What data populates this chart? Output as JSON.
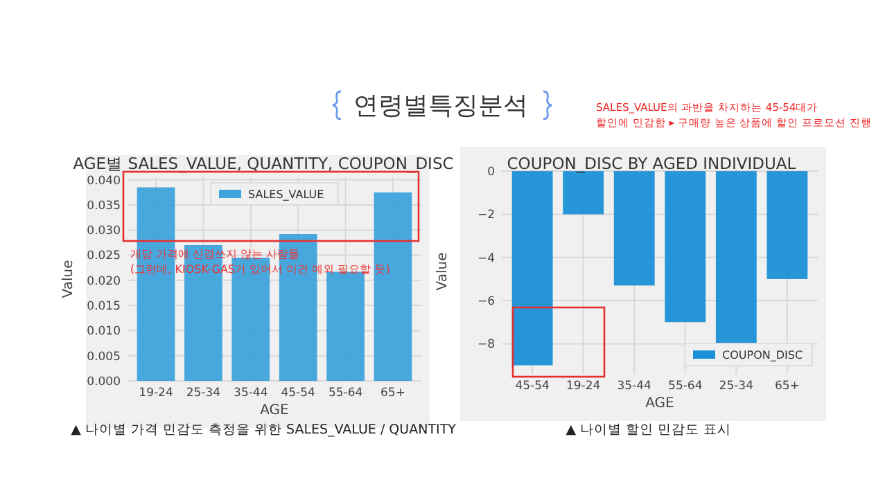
{
  "chart_data": [
    {
      "type": "other",
      "title": "연령별특징분석",
      "annotations": [
        "SALES_VALUE의 과반을 차지하는 45-54대가",
        "할인에 민감함 ▸ 구매량 높은 상품에 할인 프로모션 진행"
      ]
    },
    {
      "type": "bar",
      "title": "AGE별 SALES_VALUE, QUANTITY, COUPON_DISC",
      "xlabel": "AGE",
      "ylabel": "Value",
      "categories": [
        "19-24",
        "25-34",
        "35-44",
        "45-54",
        "55-64",
        "65+"
      ],
      "series": [
        {
          "name": "SALES_VALUE",
          "color": "#3ea3dc",
          "values": [
            0.0385,
            0.027,
            0.0245,
            0.0292,
            0.0217,
            0.0375
          ]
        }
      ],
      "ylim": [
        0,
        0.0405
      ],
      "yticks": [
        {
          "value": 0,
          "label": "0.000"
        },
        {
          "value": 0.005,
          "label": "0.005"
        },
        {
          "value": 0.01,
          "label": "0.010"
        },
        {
          "value": 0.015,
          "label": "0.015"
        },
        {
          "value": 0.02,
          "label": "0.020"
        },
        {
          "value": 0.025,
          "label": "0.025"
        },
        {
          "value": 0.03,
          "label": "0.030"
        },
        {
          "value": 0.035,
          "label": "0.035"
        },
        {
          "value": 0.04,
          "label": "0.040"
        }
      ],
      "grid": true,
      "legend": "top",
      "annotations": [
        "개당 가격에 신경쓰지 않는 사람들",
        "(그런데, KIOSK-GAS가 있어서 이건 예외 필요할 듯)",
        "▲ 나이별 가격 민감도 측정을 위한 SALES_VALUE / QUANTITY"
      ]
    },
    {
      "type": "bar",
      "title": "COUPON_DISC BY AGED INDIVIDUAL",
      "xlabel": "AGE",
      "ylabel": "Value",
      "categories": [
        "45-54",
        "19-24",
        "35-44",
        "55-64",
        "25-34",
        "65+"
      ],
      "series": [
        {
          "name": "COUPON_DISC",
          "color": "#1a90d6",
          "values": [
            -9,
            -2,
            -5.3,
            -7,
            -8,
            -5
          ]
        }
      ],
      "ylim": [
        -9.4,
        0.1
      ],
      "yticks": [
        0,
        {
          "value": -2,
          "label": "−2"
        },
        {
          "value": -4,
          "label": "−4"
        },
        {
          "value": -6,
          "label": "−6"
        },
        {
          "value": -8,
          "label": "−8"
        }
      ],
      "grid": true,
      "legend": "bottom right",
      "annotations": [
        "▲ 나이별 할인 민감도 표시"
      ]
    }
  ]
}
